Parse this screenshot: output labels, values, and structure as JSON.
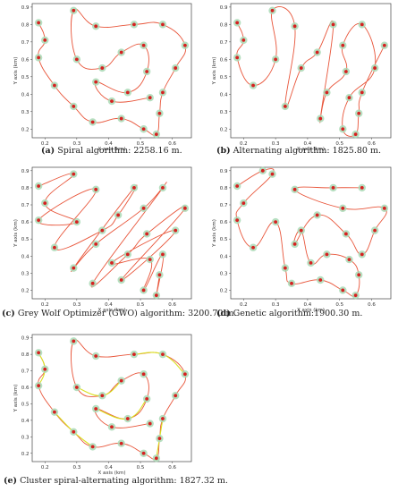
{
  "colors": {
    "path": "#e8553a",
    "path_alt": "#d9e021",
    "node": "#d62020",
    "halo": "#a9d9b5",
    "frame": "#444444"
  },
  "panels": [
    {
      "letter": "(a)",
      "caption": "Spiral algorithm: 2258.16 m."
    },
    {
      "letter": "(b)",
      "caption": "Alternating algorithm: 1825.80 m."
    },
    {
      "letter": "(c)",
      "caption": "Grey Wolf Optimizer (GWO) algorithm: 3200.70 m."
    },
    {
      "letter": "(d)",
      "caption": "Genetic algorithm:1900.30 m."
    },
    {
      "letter": "(e)",
      "caption": "Cluster spiral-alternating algorithm: 1827.32 m."
    }
  ],
  "chart_data": [
    {
      "type": "scatter",
      "title": "",
      "xlabel": "X axis (km)",
      "ylabel": "Y axis (km)",
      "xlim": [
        0.16,
        0.66
      ],
      "ylim": [
        0.15,
        0.92
      ],
      "xticks": [
        "0.2",
        "0.3",
        "0.4",
        "0.5",
        "0.6"
      ],
      "yticks": [
        "0.2",
        "0.3",
        "0.4",
        "0.5",
        "0.6",
        "0.7",
        "0.8",
        "0.9"
      ],
      "route_color": "red",
      "points": [
        [
          0.18,
          0.81
        ],
        [
          0.2,
          0.71
        ],
        [
          0.18,
          0.61
        ],
        [
          0.23,
          0.45
        ],
        [
          0.29,
          0.33
        ],
        [
          0.35,
          0.24
        ],
        [
          0.44,
          0.26
        ],
        [
          0.51,
          0.2
        ],
        [
          0.55,
          0.17
        ],
        [
          0.56,
          0.29
        ],
        [
          0.57,
          0.41
        ],
        [
          0.61,
          0.55
        ],
        [
          0.64,
          0.68
        ],
        [
          0.57,
          0.8
        ],
        [
          0.48,
          0.8
        ],
        [
          0.36,
          0.79
        ],
        [
          0.29,
          0.88
        ],
        [
          0.3,
          0.6
        ],
        [
          0.38,
          0.55
        ],
        [
          0.44,
          0.64
        ],
        [
          0.51,
          0.68
        ],
        [
          0.52,
          0.53
        ],
        [
          0.46,
          0.41
        ],
        [
          0.36,
          0.47
        ],
        [
          0.41,
          0.36
        ],
        [
          0.53,
          0.38
        ]
      ]
    },
    {
      "type": "scatter",
      "title": "",
      "xlabel": "X axis (km)",
      "ylabel": "Y axis (km)",
      "xlim": [
        0.16,
        0.66
      ],
      "ylim": [
        0.15,
        0.92
      ],
      "xticks": [
        "0.2",
        "0.3",
        "0.4",
        "0.5",
        "0.6"
      ],
      "yticks": [
        "0.2",
        "0.3",
        "0.4",
        "0.5",
        "0.6",
        "0.7",
        "0.8",
        "0.9"
      ],
      "route_color": "red",
      "points": [
        [
          0.18,
          0.81
        ],
        [
          0.2,
          0.71
        ],
        [
          0.18,
          0.61
        ],
        [
          0.23,
          0.45
        ],
        [
          0.3,
          0.6
        ],
        [
          0.29,
          0.88
        ],
        [
          0.36,
          0.79
        ],
        [
          0.33,
          0.33
        ],
        [
          0.38,
          0.55
        ],
        [
          0.43,
          0.64
        ],
        [
          0.48,
          0.8
        ],
        [
          0.44,
          0.26
        ],
        [
          0.46,
          0.41
        ],
        [
          0.52,
          0.53
        ],
        [
          0.51,
          0.68
        ],
        [
          0.57,
          0.8
        ],
        [
          0.61,
          0.55
        ],
        [
          0.53,
          0.38
        ],
        [
          0.51,
          0.2
        ],
        [
          0.55,
          0.17
        ],
        [
          0.56,
          0.29
        ],
        [
          0.57,
          0.41
        ],
        [
          0.64,
          0.68
        ]
      ]
    },
    {
      "type": "scatter",
      "title": "",
      "xlabel": "X axis (km)",
      "ylabel": "Y axis (km)",
      "xlim": [
        0.16,
        0.66
      ],
      "ylim": [
        0.15,
        0.92
      ],
      "xticks": [
        "0.2",
        "0.3",
        "0.4",
        "0.5",
        "0.6"
      ],
      "yticks": [
        "0.2",
        "0.3",
        "0.4",
        "0.5",
        "0.6",
        "0.7",
        "0.8",
        "0.9"
      ],
      "route_color": "red",
      "points": [
        [
          0.18,
          0.81
        ],
        [
          0.29,
          0.88
        ],
        [
          0.2,
          0.71
        ],
        [
          0.3,
          0.6
        ],
        [
          0.18,
          0.61
        ],
        [
          0.36,
          0.79
        ],
        [
          0.23,
          0.45
        ],
        [
          0.38,
          0.55
        ],
        [
          0.43,
          0.64
        ],
        [
          0.48,
          0.8
        ],
        [
          0.29,
          0.33
        ],
        [
          0.36,
          0.47
        ],
        [
          0.51,
          0.68
        ],
        [
          0.57,
          0.8
        ],
        [
          0.35,
          0.24
        ],
        [
          0.46,
          0.41
        ],
        [
          0.52,
          0.53
        ],
        [
          0.64,
          0.68
        ],
        [
          0.44,
          0.26
        ],
        [
          0.61,
          0.55
        ],
        [
          0.41,
          0.36
        ],
        [
          0.53,
          0.38
        ],
        [
          0.51,
          0.2
        ],
        [
          0.57,
          0.41
        ],
        [
          0.55,
          0.17
        ],
        [
          0.56,
          0.29
        ]
      ]
    },
    {
      "type": "scatter",
      "title": "",
      "xlabel": "X axis (km)",
      "ylabel": "Y axis (km)",
      "xlim": [
        0.16,
        0.66
      ],
      "ylim": [
        0.15,
        0.92
      ],
      "xticks": [
        "0.2",
        "0.3",
        "0.4",
        "0.5",
        "0.6"
      ],
      "yticks": [
        "0.2",
        "0.3",
        "0.4",
        "0.5",
        "0.6",
        "0.7",
        "0.8",
        "0.9"
      ],
      "route_color": "red",
      "points": [
        [
          0.18,
          0.81
        ],
        [
          0.26,
          0.9
        ],
        [
          0.29,
          0.88
        ],
        [
          0.2,
          0.71
        ],
        [
          0.18,
          0.61
        ],
        [
          0.23,
          0.45
        ],
        [
          0.3,
          0.6
        ],
        [
          0.33,
          0.33
        ],
        [
          0.35,
          0.24
        ],
        [
          0.44,
          0.26
        ],
        [
          0.51,
          0.2
        ],
        [
          0.55,
          0.17
        ],
        [
          0.56,
          0.29
        ],
        [
          0.53,
          0.38
        ],
        [
          0.46,
          0.41
        ],
        [
          0.41,
          0.36
        ],
        [
          0.38,
          0.55
        ],
        [
          0.36,
          0.47
        ],
        [
          0.43,
          0.64
        ],
        [
          0.52,
          0.53
        ],
        [
          0.57,
          0.41
        ],
        [
          0.61,
          0.55
        ],
        [
          0.64,
          0.68
        ],
        [
          0.51,
          0.68
        ],
        [
          0.36,
          0.79
        ],
        [
          0.48,
          0.8
        ],
        [
          0.57,
          0.8
        ]
      ]
    },
    {
      "type": "scatter",
      "title": "",
      "xlabel": "X axis (km)",
      "ylabel": "Y axis (km)",
      "xlim": [
        0.16,
        0.66
      ],
      "ylim": [
        0.15,
        0.92
      ],
      "xticks": [
        "0.2",
        "0.3",
        "0.4",
        "0.5",
        "0.6"
      ],
      "yticks": [
        "0.2",
        "0.3",
        "0.4",
        "0.5",
        "0.6",
        "0.7",
        "0.8",
        "0.9"
      ],
      "route_color": "red and yellow",
      "points": [
        [
          0.18,
          0.81
        ],
        [
          0.2,
          0.71
        ],
        [
          0.18,
          0.61
        ],
        [
          0.23,
          0.45
        ],
        [
          0.29,
          0.33
        ],
        [
          0.35,
          0.24
        ],
        [
          0.44,
          0.26
        ],
        [
          0.51,
          0.2
        ],
        [
          0.55,
          0.17
        ],
        [
          0.56,
          0.29
        ],
        [
          0.57,
          0.41
        ],
        [
          0.61,
          0.55
        ],
        [
          0.64,
          0.68
        ],
        [
          0.57,
          0.8
        ],
        [
          0.48,
          0.8
        ],
        [
          0.36,
          0.79
        ],
        [
          0.29,
          0.88
        ],
        [
          0.3,
          0.6
        ],
        [
          0.38,
          0.55
        ],
        [
          0.44,
          0.64
        ],
        [
          0.51,
          0.68
        ],
        [
          0.52,
          0.53
        ],
        [
          0.46,
          0.41
        ],
        [
          0.36,
          0.47
        ],
        [
          0.41,
          0.36
        ],
        [
          0.53,
          0.38
        ]
      ],
      "alt_segments": [
        [
          0,
          2
        ],
        [
          3,
          5
        ],
        [
          8,
          10
        ],
        [
          12,
          14
        ],
        [
          17,
          19
        ],
        [
          21,
          23
        ]
      ]
    }
  ]
}
